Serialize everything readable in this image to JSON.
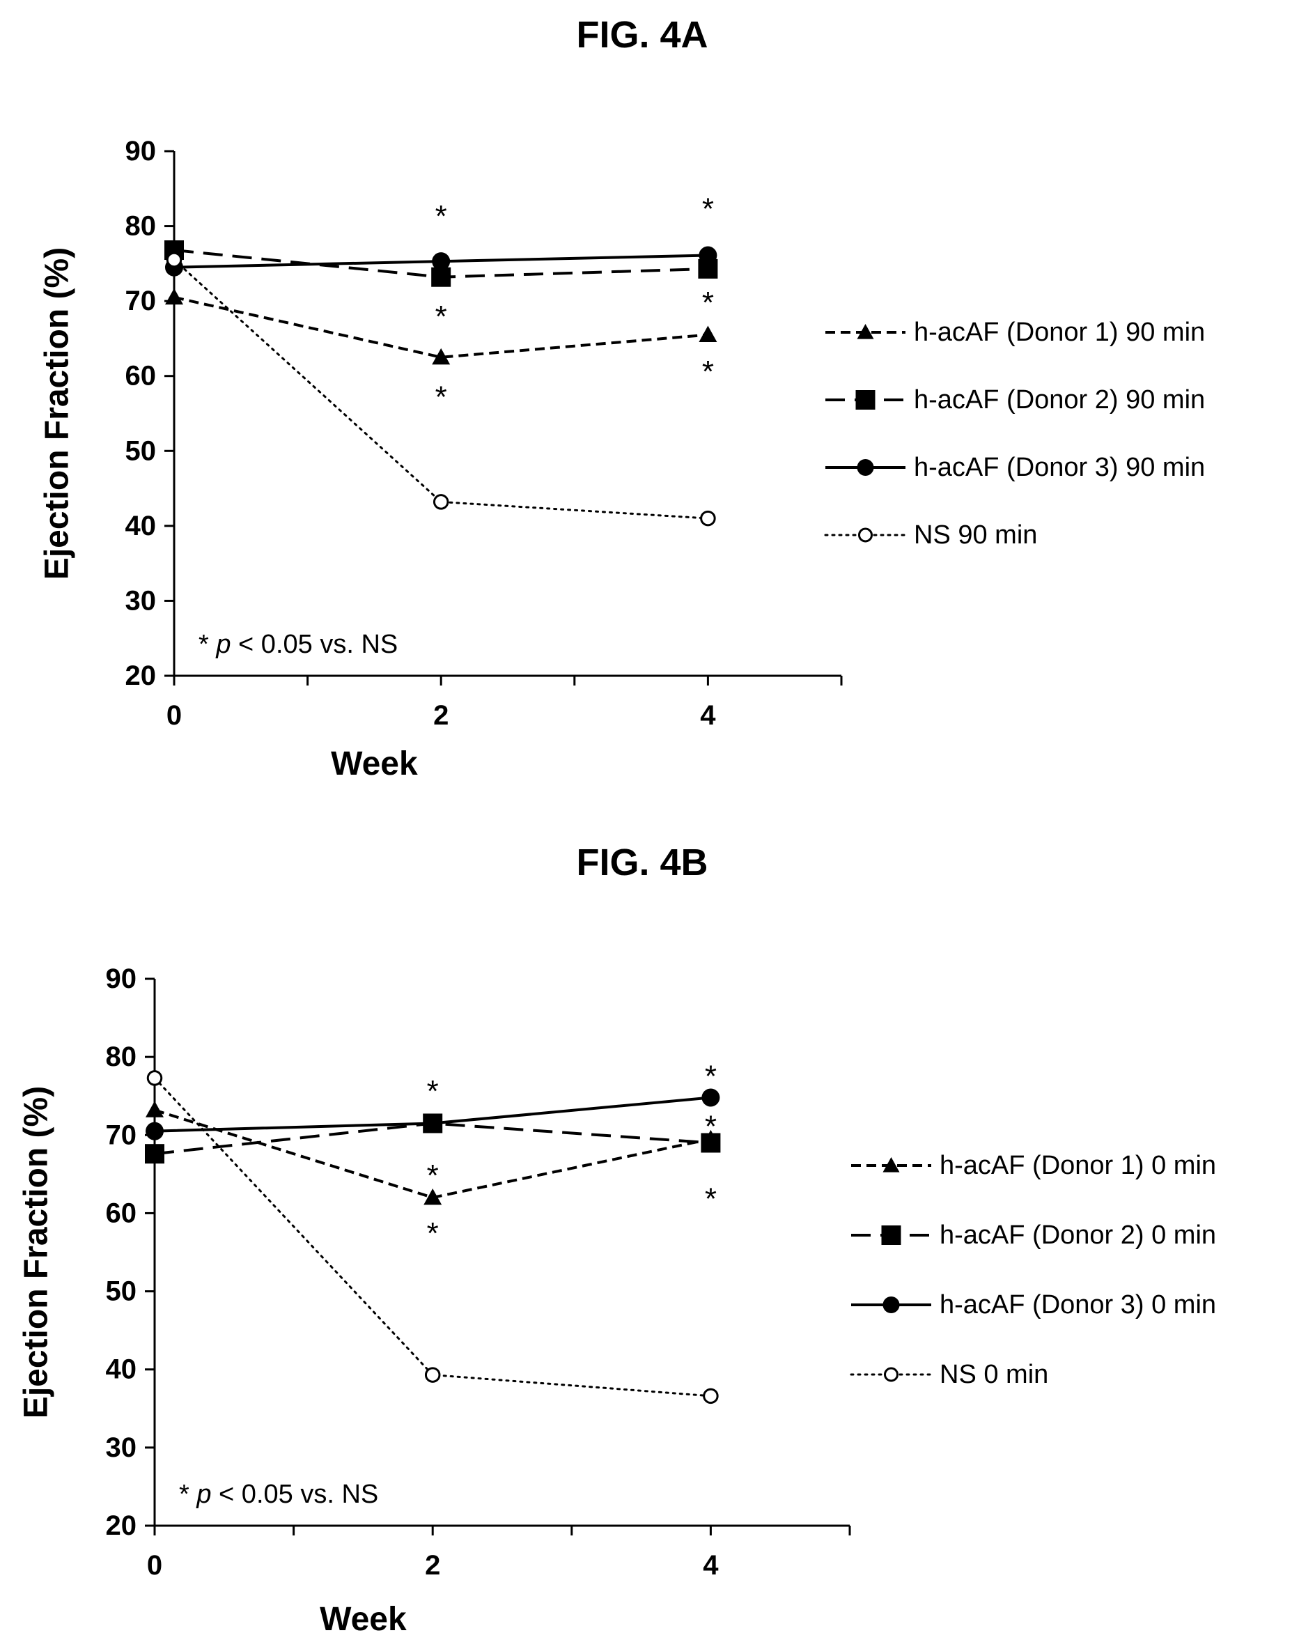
{
  "chart_data": [
    {
      "type": "line",
      "title": "FIG. 4A",
      "xlabel": "Week",
      "ylabel": "Ejection Fraction (%)",
      "x": [
        0,
        2,
        4
      ],
      "xticks": [
        "0",
        "2",
        "4"
      ],
      "xlim": [
        0,
        5
      ],
      "ylim": [
        20,
        90
      ],
      "yticks": [
        "20",
        "30",
        "40",
        "50",
        "60",
        "70",
        "80",
        "90"
      ],
      "grid": false,
      "legend_position": "right",
      "note": {
        "prefix": "* ",
        "italic": "p",
        "suffix": " < 0.05 vs. NS"
      },
      "series": [
        {
          "name": "h-acAF (Donor 1) 90 min",
          "marker": "triangle",
          "line": "short-dash",
          "values": [
            70.5,
            62.5,
            65.5
          ]
        },
        {
          "name": "h-acAF (Donor 2) 90 min",
          "marker": "square",
          "line": "long-dash",
          "values": [
            76.8,
            73.2,
            74.3
          ]
        },
        {
          "name": "h-acAF (Donor 3) 90 min",
          "marker": "circle",
          "line": "solid",
          "values": [
            74.5,
            75.3,
            76.1
          ]
        },
        {
          "name": "NS 90 min",
          "marker": "open-circle",
          "line": "dotted",
          "values": [
            75.5,
            43.2,
            41.0
          ]
        }
      ],
      "significance_markers": [
        {
          "text": "*",
          "x": 2,
          "y": 81.3
        },
        {
          "text": "*",
          "x": 2,
          "y": 67.9
        },
        {
          "text": "*",
          "x": 2,
          "y": 57.2
        },
        {
          "text": "*",
          "x": 4,
          "y": 82.3
        },
        {
          "text": "*",
          "x": 4,
          "y": 69.8
        },
        {
          "text": "*",
          "x": 4,
          "y": 60.6
        }
      ]
    },
    {
      "type": "line",
      "title": "FIG. 4B",
      "xlabel": "Week",
      "ylabel": "Ejection Fraction (%)",
      "x": [
        0,
        2,
        4
      ],
      "xticks": [
        "0",
        "2",
        "4"
      ],
      "xlim": [
        0,
        5
      ],
      "ylim": [
        20,
        90
      ],
      "yticks": [
        "20",
        "30",
        "40",
        "50",
        "60",
        "70",
        "80",
        "90"
      ],
      "grid": false,
      "legend_position": "right",
      "note": {
        "prefix": "* ",
        "italic": "p",
        "suffix": " < 0.05 vs. NS"
      },
      "series": [
        {
          "name": "h-acAF (Donor 1) 0 min",
          "marker": "triangle",
          "line": "short-dash",
          "values": [
            73.2,
            62.0,
            69.5
          ]
        },
        {
          "name": "h-acAF (Donor 2) 0 min",
          "marker": "square",
          "line": "long-dash",
          "values": [
            67.6,
            71.5,
            69.0
          ]
        },
        {
          "name": "h-acAF (Donor 3) 0 min",
          "marker": "circle",
          "line": "solid",
          "values": [
            70.5,
            71.5,
            74.8
          ]
        },
        {
          "name": "NS 0 min",
          "marker": "open-circle",
          "line": "dotted",
          "values": [
            77.3,
            39.3,
            36.6
          ]
        }
      ],
      "significance_markers": [
        {
          "text": "*",
          "x": 2,
          "y": 75.6
        },
        {
          "text": "*",
          "x": 2,
          "y": 64.8
        },
        {
          "text": "*",
          "x": 2,
          "y": 57.4
        },
        {
          "text": "*",
          "x": 4,
          "y": 77.5
        },
        {
          "text": "*",
          "x": 4,
          "y": 71.1
        },
        {
          "text": "*",
          "x": 4,
          "y": 61.8
        }
      ]
    }
  ],
  "colors": {
    "ink": "#000000",
    "background": "#ffffff"
  }
}
